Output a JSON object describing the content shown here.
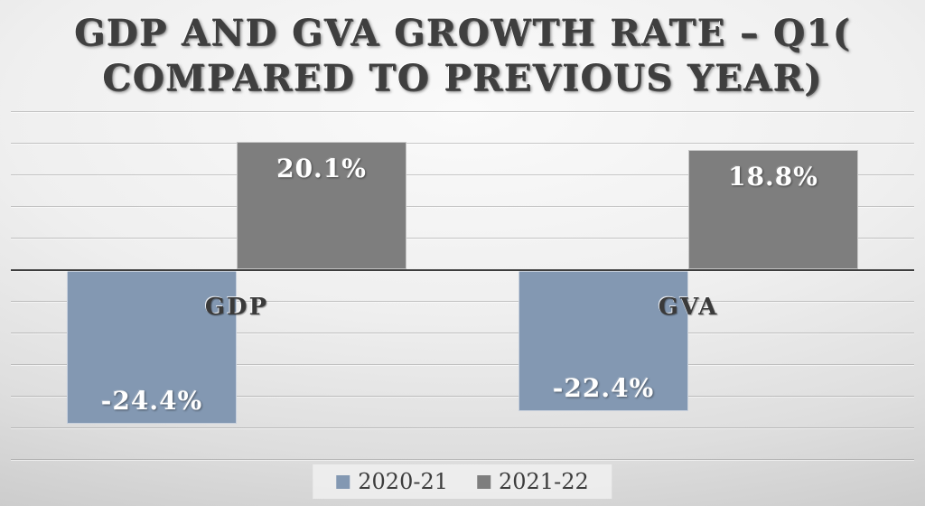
{
  "title": {
    "line1": "GDP AND GVA GROWTH RATE – Q1(",
    "line2": "COMPARED TO PREVIOUS YEAR)"
  },
  "chart_data": {
    "type": "bar",
    "title": "GDP AND GVA GROWTH RATE – Q1( COMPARED TO PREVIOUS YEAR)",
    "categories": [
      "GDP",
      "GVA"
    ],
    "series": [
      {
        "name": "2020-21",
        "color": "#8398b2",
        "values": [
          -24.4,
          -22.4
        ],
        "data_labels": [
          "-24.4%",
          "-22.4%"
        ]
      },
      {
        "name": "2021-22",
        "color": "#7e7e7e",
        "values": [
          20.1,
          18.8
        ],
        "data_labels": [
          "20.1%",
          "18.8%"
        ]
      }
    ],
    "ylim": [
      -30,
      25
    ],
    "gridline_interval": 5,
    "grid": true,
    "y_axis_tick_labels_visible": false,
    "legend_position": "bottom",
    "data_label_position": "inside_end",
    "data_label_color": "#ffffff"
  },
  "colors": {
    "series_blue": "#8398b2",
    "series_gray": "#7e7e7e",
    "gridline": "#828282",
    "zero_axis": "#3d3d3d",
    "title_text": "#3f3f3f",
    "background_light": "#fafafa",
    "background_dark": "#c3c3c3",
    "legend_background": "#f2f2f2"
  }
}
